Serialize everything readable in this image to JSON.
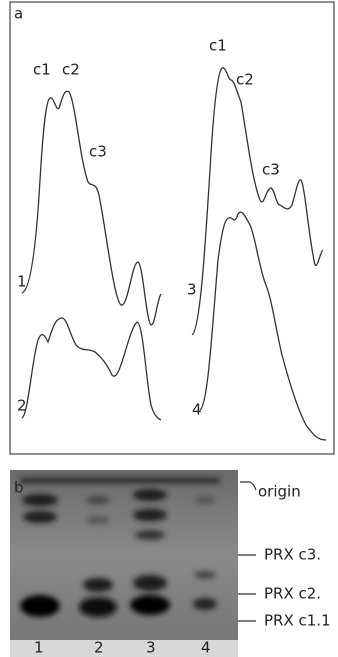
{
  "figure": {
    "panel_a": {
      "label": "a",
      "peak_labels": [
        "c1",
        "c2",
        "c3",
        "c1",
        "c2",
        "c3"
      ],
      "trace_labels": [
        "1",
        "2",
        "3",
        "4"
      ]
    },
    "panel_b": {
      "label": "b",
      "band_labels": [
        "origin",
        "PRX c3.",
        "PRX c2.",
        "PRX c1.1"
      ],
      "lane_labels": [
        "1",
        "2",
        "3",
        "4"
      ]
    }
  }
}
